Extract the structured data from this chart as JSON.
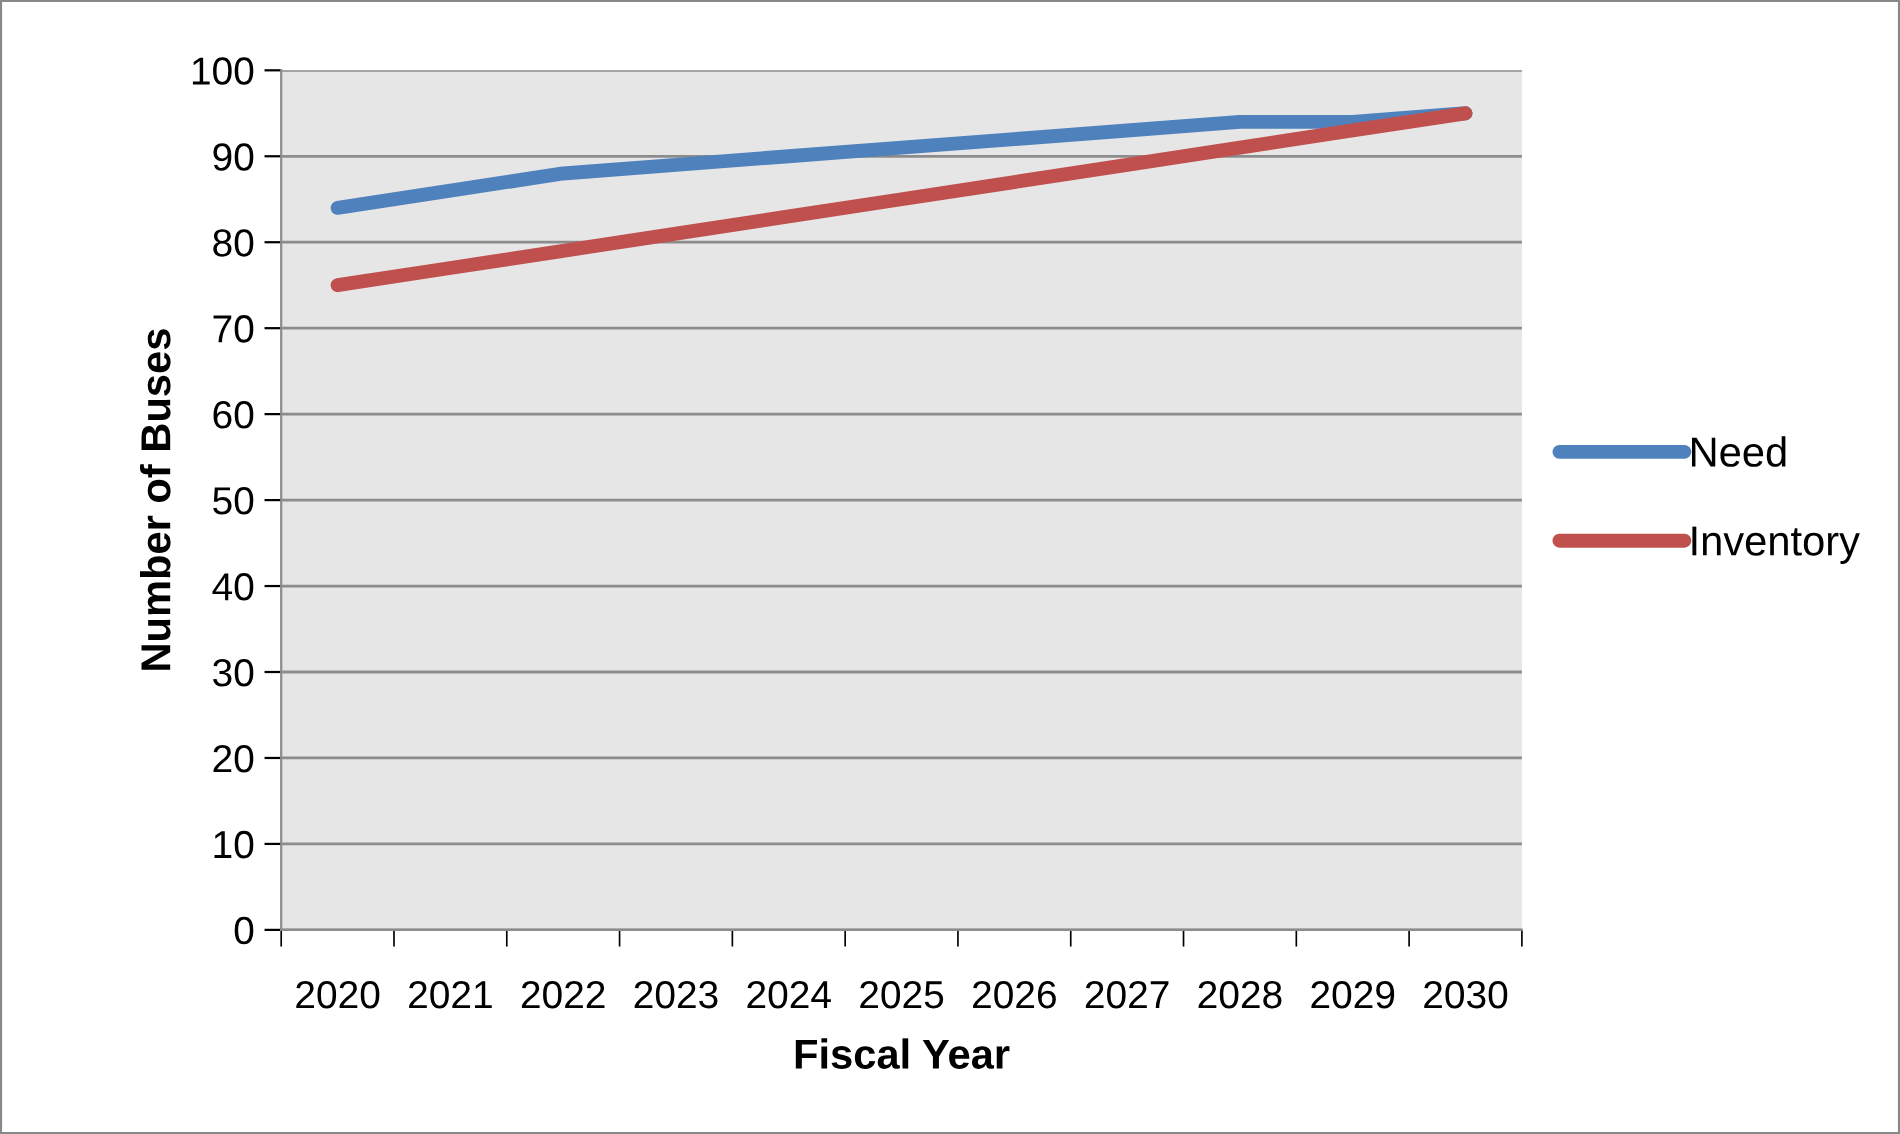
{
  "chart_data": {
    "type": "line",
    "xlabel": "Fiscal Year",
    "ylabel": "Number of Buses",
    "categories": [
      "2020",
      "2021",
      "2022",
      "2023",
      "2024",
      "2025",
      "2026",
      "2027",
      "2028",
      "2029",
      "2030"
    ],
    "series": [
      {
        "name": "Need",
        "color": "#4f81bd",
        "values": [
          84,
          86,
          88,
          89,
          90,
          91,
          92,
          93,
          94,
          94,
          95
        ]
      },
      {
        "name": "Inventory",
        "color": "#c0504d",
        "values": [
          75,
          77,
          79,
          81,
          83,
          85,
          87,
          89,
          91,
          93,
          95
        ]
      }
    ],
    "ylim": [
      0,
      100
    ],
    "yticks": [
      0,
      10,
      20,
      30,
      40,
      50,
      60,
      70,
      80,
      90,
      100
    ],
    "grid": "y",
    "legend": "right",
    "marker": "none",
    "line_style": "solid"
  }
}
